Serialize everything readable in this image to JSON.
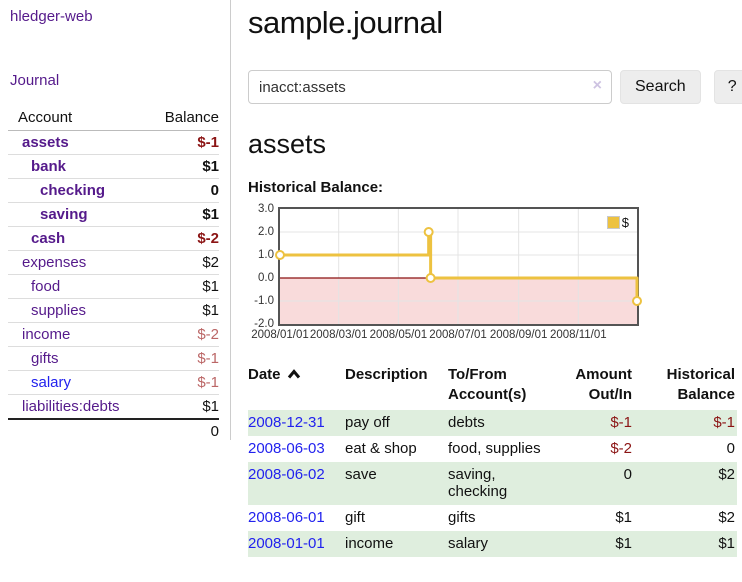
{
  "brand": "hledger-web",
  "sidebar": {
    "nav": {
      "journal": "Journal"
    },
    "accounts": {
      "header": {
        "account": "Account",
        "balance": "Balance"
      },
      "rows": [
        {
          "name": "assets",
          "balance": "$-1"
        },
        {
          "name": "bank",
          "balance": "$1"
        },
        {
          "name": "checking",
          "balance": "0"
        },
        {
          "name": "saving",
          "balance": "$1"
        },
        {
          "name": "cash",
          "balance": "$-2"
        },
        {
          "name": "expenses",
          "balance": "$2"
        },
        {
          "name": "food",
          "balance": "$1"
        },
        {
          "name": "supplies",
          "balance": "$1"
        },
        {
          "name": "income",
          "balance": "$-2"
        },
        {
          "name": "gifts",
          "balance": "$-1"
        },
        {
          "name": "salary",
          "balance": "$-1"
        },
        {
          "name": "liabilities:debts",
          "balance": "$1"
        }
      ],
      "total": "0"
    }
  },
  "main": {
    "title": "sample.journal",
    "search": {
      "value": "inacct:assets",
      "clear_icon": "×",
      "search_button": "Search",
      "help_button": "?"
    },
    "account_heading": "assets",
    "section_label": "Historical Balance:",
    "register": {
      "header": {
        "date": "Date",
        "description": "Description",
        "accounts": "To/From Account(s)",
        "amount": "Amount Out/In",
        "balance": "Historical Balance"
      },
      "rows": [
        {
          "date": "2008-12-31",
          "description": "pay off",
          "accounts": "debts",
          "amount": "$-1",
          "balance": "$-1"
        },
        {
          "date": "2008-06-03",
          "description": "eat & shop",
          "accounts": "food, supplies",
          "amount": "$-2",
          "balance": "0"
        },
        {
          "date": "2008-06-02",
          "description": "save",
          "accounts": "saving, checking",
          "amount": "0",
          "balance": "$2"
        },
        {
          "date": "2008-06-01",
          "description": "gift",
          "accounts": "gifts",
          "amount": "$1",
          "balance": "$2"
        },
        {
          "date": "2008-01-01",
          "description": "income",
          "accounts": "salary",
          "amount": "$1",
          "balance": "$1"
        }
      ]
    }
  },
  "chart_data": {
    "type": "line",
    "step": true,
    "title": "Historical Balance:",
    "series": [
      {
        "name": "$",
        "points": [
          [
            "2008-01-01",
            1
          ],
          [
            "2008-06-01",
            2
          ],
          [
            "2008-06-03",
            0
          ],
          [
            "2008-12-31",
            -1
          ]
        ]
      }
    ],
    "xrange": [
      "2008-01-01",
      "2008-12-31"
    ],
    "ylim": [
      -2,
      3
    ],
    "yticks": [
      3,
      2,
      1,
      0,
      -1,
      -2
    ],
    "xticks": [
      {
        "label": "2008/01/01",
        "date": "2008-01-01"
      },
      {
        "label": "2008/03/01",
        "date": "2008-03-01"
      },
      {
        "label": "2008/05/01",
        "date": "2008-05-01"
      },
      {
        "label": "2008/07/01",
        "date": "2008-07-01"
      },
      {
        "label": "2008/09/01",
        "date": "2008-09-01"
      },
      {
        "label": "2008/11/01",
        "date": "2008-11-01"
      }
    ],
    "legend": {
      "position": "top-right",
      "entries": [
        {
          "label": "$",
          "color": "#edc240"
        }
      ]
    },
    "grid": true,
    "colors": {
      "line": "#edc240",
      "marker_fill": "#ffffff",
      "negative_region": "#f9dbdb",
      "zero_line": "#8b1111",
      "grid": "#e4e4e4",
      "border": "#545454"
    }
  }
}
